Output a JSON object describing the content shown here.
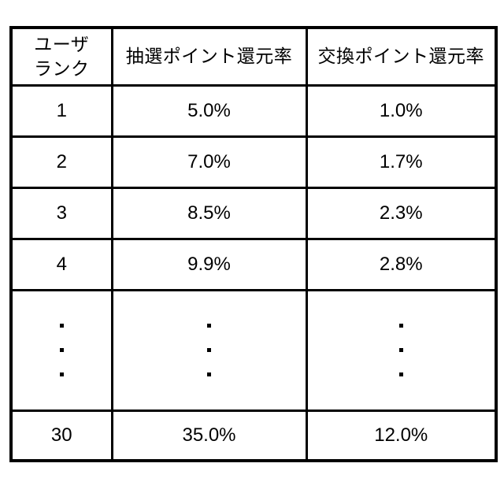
{
  "figure": {
    "background_color": "#ffffff",
    "border_color": "#000000",
    "text_color": "#000000"
  },
  "table": {
    "header": {
      "rank_line1": "ユーザ",
      "rank_line2": "ランク",
      "lottery": "抽選ポイント還元率",
      "exchange": "交換ポイント還元率"
    },
    "rows": [
      {
        "rank": "1",
        "lottery": "5.0%",
        "exchange": "1.0%"
      },
      {
        "rank": "2",
        "lottery": "7.0%",
        "exchange": "1.7%"
      },
      {
        "rank": "3",
        "lottery": "8.5%",
        "exchange": "2.3%"
      },
      {
        "rank": "4",
        "lottery": "9.9%",
        "exchange": "2.8%"
      },
      {
        "rank": "30",
        "lottery": "35.0%",
        "exchange": "12.0%"
      }
    ],
    "ellipsis": "⋮"
  },
  "chart_data": {
    "type": "table",
    "title": "",
    "columns": [
      "ユーザランク",
      "抽選ポイント還元率",
      "交換ポイント還元率"
    ],
    "rows": [
      [
        "1",
        "5.0%",
        "1.0%"
      ],
      [
        "2",
        "7.0%",
        "1.7%"
      ],
      [
        "3",
        "8.5%",
        "2.3%"
      ],
      [
        "4",
        "9.9%",
        "2.8%"
      ],
      [
        "⋮",
        "⋮",
        "⋮"
      ],
      [
        "30",
        "35.0%",
        "12.0%"
      ]
    ],
    "notes": "Rows 5-29 are elided with vertical ellipsis dots in each column"
  }
}
